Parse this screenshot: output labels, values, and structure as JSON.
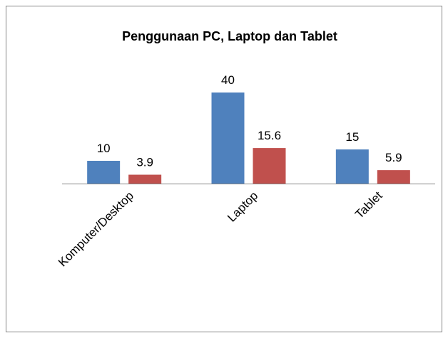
{
  "chart_data": {
    "type": "bar",
    "title": "Penggunaan PC, Laptop dan Tablet",
    "categories": [
      "Komputer/Desktop",
      "Laptop",
      "Tablet"
    ],
    "series": [
      {
        "color": "#4f81bd",
        "values": [
          10,
          40,
          15
        ]
      },
      {
        "color": "#c0504d",
        "values": [
          3.9,
          15.6,
          5.9
        ]
      }
    ],
    "ylim": [
      0,
      50
    ]
  }
}
